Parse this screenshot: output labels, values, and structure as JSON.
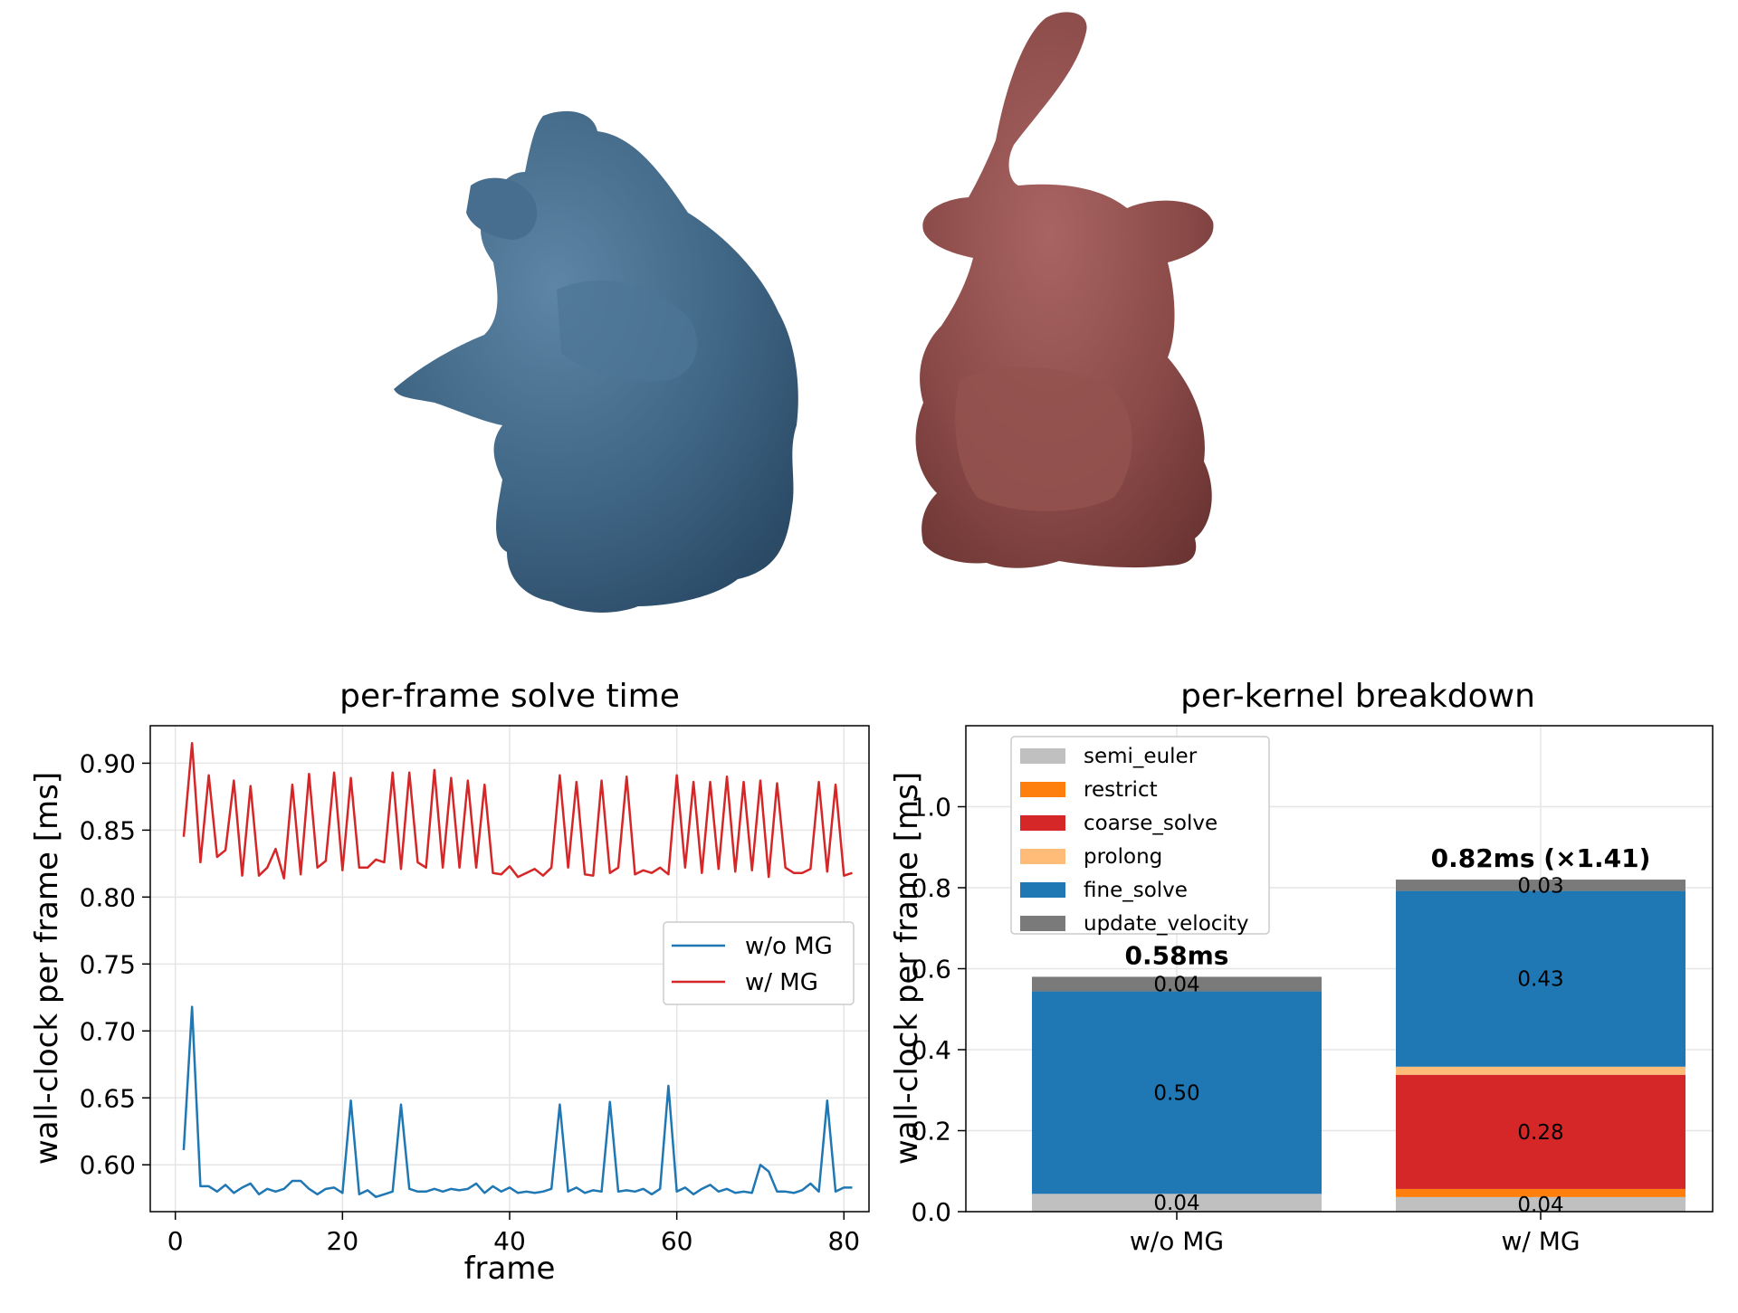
{
  "colors": {
    "blue": "#1f77b4",
    "red": "#d62728",
    "orange": "#ff7f0e",
    "light_orange": "#ffbb78",
    "light_gray": "#c0c0c0",
    "dark_gray": "#7a7a7a",
    "grid": "#e5e5e5"
  },
  "renders": [
    {
      "name": "deformed-bunny",
      "color": "#3f6584"
    },
    {
      "name": "reference-bunny",
      "color": "#8a4a48"
    }
  ],
  "chart_data": [
    {
      "type": "line",
      "title": "per-frame solve time",
      "xlabel": "frame",
      "ylabel": "wall-clock per frame [ms]",
      "xlim": [
        -3,
        83
      ],
      "ylim": [
        0.565,
        0.928
      ],
      "xticks": [
        0,
        20,
        40,
        60,
        80
      ],
      "yticks": [
        0.6,
        0.65,
        0.7,
        0.75,
        0.8,
        0.85,
        0.9
      ],
      "grid": true,
      "legend": "center-right",
      "x_start": 1,
      "series": [
        {
          "name": "w/o MG",
          "color": "#1f77b4",
          "values": [
            0.611,
            0.718,
            0.584,
            0.584,
            0.58,
            0.585,
            0.579,
            0.583,
            0.586,
            0.578,
            0.582,
            0.58,
            0.582,
            0.588,
            0.588,
            0.582,
            0.578,
            0.582,
            0.583,
            0.579,
            0.648,
            0.578,
            0.581,
            0.576,
            0.578,
            0.58,
            0.645,
            0.582,
            0.58,
            0.58,
            0.582,
            0.58,
            0.582,
            0.581,
            0.582,
            0.586,
            0.579,
            0.584,
            0.58,
            0.583,
            0.579,
            0.58,
            0.579,
            0.58,
            0.582,
            0.645,
            0.58,
            0.583,
            0.579,
            0.581,
            0.58,
            0.647,
            0.58,
            0.581,
            0.58,
            0.582,
            0.578,
            0.582,
            0.659,
            0.58,
            0.583,
            0.578,
            0.582,
            0.585,
            0.58,
            0.582,
            0.579,
            0.58,
            0.579,
            0.6,
            0.595,
            0.58,
            0.58,
            0.579,
            0.581,
            0.586,
            0.58,
            0.648,
            0.58,
            0.583,
            0.583
          ]
        },
        {
          "name": "w/ MG",
          "color": "#d62728",
          "values": [
            0.845,
            0.915,
            0.826,
            0.891,
            0.83,
            0.835,
            0.887,
            0.816,
            0.883,
            0.816,
            0.822,
            0.836,
            0.814,
            0.884,
            0.817,
            0.892,
            0.822,
            0.827,
            0.893,
            0.82,
            0.889,
            0.822,
            0.822,
            0.828,
            0.826,
            0.893,
            0.821,
            0.893,
            0.826,
            0.822,
            0.895,
            0.822,
            0.889,
            0.822,
            0.887,
            0.822,
            0.884,
            0.818,
            0.817,
            0.823,
            0.815,
            0.818,
            0.821,
            0.816,
            0.822,
            0.891,
            0.822,
            0.886,
            0.817,
            0.816,
            0.887,
            0.818,
            0.822,
            0.89,
            0.817,
            0.82,
            0.818,
            0.822,
            0.817,
            0.891,
            0.822,
            0.886,
            0.818,
            0.886,
            0.821,
            0.89,
            0.819,
            0.886,
            0.82,
            0.887,
            0.815,
            0.885,
            0.822,
            0.818,
            0.818,
            0.821,
            0.886,
            0.819,
            0.884,
            0.816,
            0.818
          ]
        }
      ]
    },
    {
      "type": "bar",
      "stacked": true,
      "title": "per-kernel breakdown",
      "xlabel": "",
      "ylabel": "wall-clock per frame [ms]",
      "categories": [
        "w/o MG",
        "w/ MG"
      ],
      "ylim": [
        0,
        1.2
      ],
      "yticks": [
        0.0,
        0.2,
        0.4,
        0.6,
        0.8,
        1.0
      ],
      "grid": true,
      "legend": "top-left",
      "series": [
        {
          "name": "semi_euler",
          "color": "#c0c0c0",
          "values": [
            0.044,
            0.036
          ]
        },
        {
          "name": "restrict",
          "color": "#ff7f0e",
          "values": [
            0.0,
            0.02
          ]
        },
        {
          "name": "coarse_solve",
          "color": "#d62728",
          "values": [
            0.0,
            0.282
          ]
        },
        {
          "name": "prolong",
          "color": "#ffbb78",
          "values": [
            0.0,
            0.02
          ]
        },
        {
          "name": "fine_solve",
          "color": "#1f77b4",
          "values": [
            0.5,
            0.434
          ]
        },
        {
          "name": "update_velocity",
          "color": "#7a7a7a",
          "values": [
            0.036,
            0.028
          ]
        }
      ],
      "segment_labels": [
        [
          {
            "series": "semi_euler",
            "text": "0.04"
          },
          {
            "series": "fine_solve",
            "text": "0.50"
          },
          {
            "series": "update_velocity",
            "text": "0.04"
          }
        ],
        [
          {
            "series": "semi_euler",
            "text": "0.04"
          },
          {
            "series": "coarse_solve",
            "text": "0.28"
          },
          {
            "series": "fine_solve",
            "text": "0.43"
          },
          {
            "series": "update_velocity",
            "text": "0.03"
          }
        ]
      ],
      "totals": [
        "0.58ms",
        "0.82ms  (×1.41)"
      ]
    }
  ]
}
